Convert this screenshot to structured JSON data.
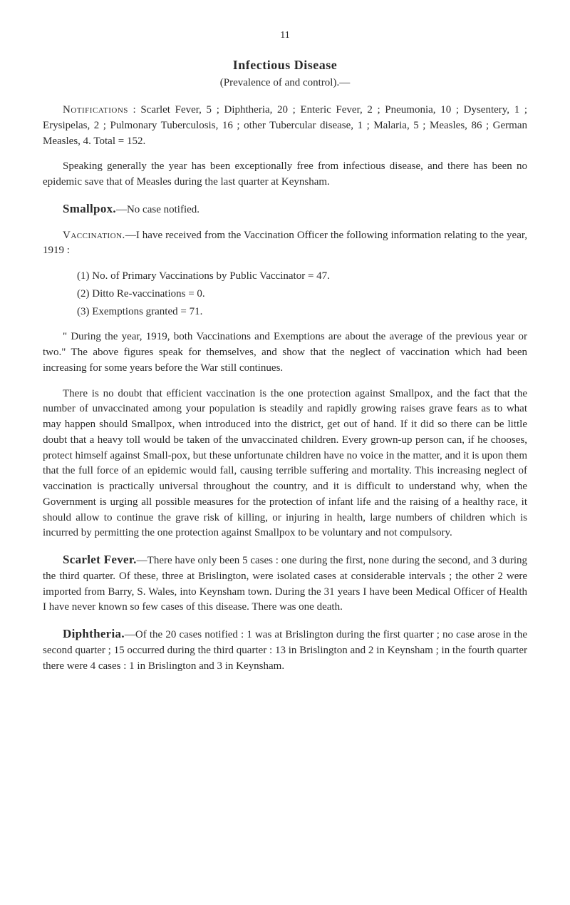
{
  "page_number": "11",
  "title": "Infectious Disease",
  "subtitle": "(Prevalence of and control).—",
  "notifications_para": "Notifications : Scarlet Fever, 5 ; Diphtheria, 20 ; Enteric Fever, 2 ; Pneumonia, 10 ; Dysentery, 1 ; Erysipelas, 2 ; Pulmonary Tuberculosis, 16 ; other Tubercular disease, 1 ; Malaria, 5 ; Measles, 86 ; German Measles, 4. Total = 152.",
  "notifications_label": "Notifications",
  "notifications_body": " : Scarlet Fever, 5 ; Diphtheria, 20 ; Enteric Fever, 2 ; Pneumonia, 10 ; Dysentery, 1 ; Erysipelas, 2 ; Pulmonary Tuberculosis, 16 ; other Tubercular disease, 1 ; Malaria, 5 ; Measles, 86 ; German Measles, 4. Total = 152.",
  "speaking_para": "Speaking generally the year has been exceptionally free from infectious disease, and there has been no epidemic save that of Measles during the last quarter at Keynsham.",
  "smallpox_head": "Smallpox.",
  "smallpox_body": "—No case notified.",
  "vaccination_label": "Vaccination.",
  "vaccination_body": "—I have received from the Vaccination Officer the following information relating to the year, 1919 :",
  "list": {
    "item1": "(1)   No. of Primary Vaccinations by Public Vaccinator = 47.",
    "item2": "(2)   Ditto Re-vaccinations = 0.",
    "item3": "(3)   Exemptions granted = 71."
  },
  "during_para": "\" During the year, 1919, both Vaccinations and Exemptions are about the average of the previous year or two.\" The above figures speak for themselves, and show that the neglect of vaccination which had been increasing for some years before the War still continues.",
  "nodoubt_para": "There is no doubt that efficient vaccination is the one protection against Smallpox, and the fact that the number of unvaccinated among your population is steadily and rapidly growing raises grave fears as to what may happen should Smallpox, when introduced into the district, get out of hand. If it did so there can be little doubt that a heavy toll would be taken of the unvaccinated children. Every grown-up person can, if he chooses, protect himself against Small-pox, but these unfortunate children have no voice in the matter, and it is upon them that the full force of an epidemic would fall, causing terrible suffering and mortality. This increasing neglect of vaccination is practically universal throughout the country, and it is difficult to understand why, when the Government is urging all possible measures for the protection of infant life and the raising of a healthy race, it should allow to continue the grave risk of killing, or injuring in health, large numbers of children which is incurred by permitting the one protection against Smallpox to be voluntary and not compulsory.",
  "scarlet_head": "Scarlet Fever.",
  "scarlet_body": "—There have only been 5 cases : one during the first, none during the second, and 3 during the third quarter. Of these, three at Brislington, were isolated cases at considerable intervals ; the other 2 were imported from Barry, S. Wales, into Keynsham town. During the 31 years I have been Medical Officer of Health I have never known so few cases of this disease. There was one death.",
  "diphtheria_head": "Diphtheria.",
  "diphtheria_body": "—Of the 20 cases notified : 1 was at Brislington during the first quarter ; no case arose in the second quarter ; 15 occurred during the third quarter : 13 in Brislington and 2 in Keynsham ; in the fourth quarter there were 4 cases : 1 in Brislington and 3 in Keynsham."
}
